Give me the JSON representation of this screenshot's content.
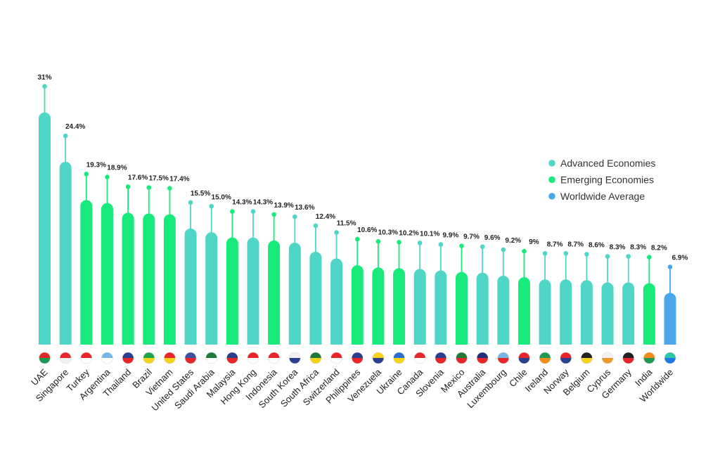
{
  "chart_data": {
    "type": "bar",
    "title": "",
    "xlabel": "",
    "ylabel": "",
    "ylim": [
      0,
      32
    ],
    "grid": false,
    "legend_placement": "right",
    "legend": [
      {
        "label": "Advanced Economies",
        "group": "advanced"
      },
      {
        "label": "Emerging Economies",
        "group": "emerging"
      },
      {
        "label": "Worldwide Average",
        "group": "worldwide"
      }
    ],
    "colors": {
      "advanced": "#4fd6c6",
      "emerging": "#19ea7c",
      "worldwide": "#4aa8ea"
    },
    "categories": [
      "UAE",
      "Singapore",
      "Turkey",
      "Argentina",
      "Thailand",
      "Brazil",
      "Vietnam",
      "United States",
      "Saudi Arabia",
      "Malaysia",
      "Hong Kong",
      "Indonesia",
      "South Korea",
      "South Africa",
      "Switzerland",
      "Philippines",
      "Venezuela",
      "Ukraine",
      "Canada",
      "Slovenia",
      "Mexico",
      "Australia",
      "Luxembourg",
      "Chile",
      "Ireland",
      "Norway",
      "Belgium",
      "Cyprus",
      "Germany",
      "India",
      "Worldwide"
    ],
    "values": [
      31,
      24.4,
      19.3,
      18.9,
      17.6,
      17.5,
      17.4,
      15.5,
      15.0,
      14.3,
      14.3,
      13.9,
      13.6,
      12.4,
      11.5,
      10.6,
      10.3,
      10.2,
      10.1,
      9.9,
      9.7,
      9.6,
      9.2,
      9,
      8.7,
      8.7,
      8.6,
      8.3,
      8.3,
      8.2,
      6.9
    ],
    "value_labels": [
      "31%",
      "24.4%",
      "19.3%",
      "18.9%",
      "17.6%",
      "17.5%",
      "17.4%",
      "15.5%",
      "15.0%",
      "14.3%",
      "14.3%",
      "13.9%",
      "13.6%",
      "12.4%",
      "11.5%",
      "10.6%",
      "10.3%",
      "10.2%",
      "10.1%",
      "9.9%",
      "9.7%",
      "9.6%",
      "9.2%",
      "9%",
      "8.7%",
      "8.7%",
      "8.6%",
      "8.3%",
      "8.3%",
      "8.2%",
      "6.9%"
    ],
    "groups": [
      "advanced",
      "advanced",
      "emerging",
      "emerging",
      "emerging",
      "emerging",
      "emerging",
      "advanced",
      "advanced",
      "emerging",
      "advanced",
      "emerging",
      "advanced",
      "advanced",
      "advanced",
      "emerging",
      "emerging",
      "emerging",
      "advanced",
      "advanced",
      "emerging",
      "advanced",
      "advanced",
      "emerging",
      "advanced",
      "advanced",
      "advanced",
      "advanced",
      "advanced",
      "emerging",
      "worldwide"
    ],
    "flag_icons": [
      "flag-uae-icon",
      "flag-singapore-icon",
      "flag-turkey-icon",
      "flag-argentina-icon",
      "flag-thailand-icon",
      "flag-brazil-icon",
      "flag-vietnam-icon",
      "flag-united-states-icon",
      "flag-saudi-arabia-icon",
      "flag-malaysia-icon",
      "flag-hong-kong-icon",
      "flag-indonesia-icon",
      "flag-south-korea-icon",
      "flag-south-africa-icon",
      "flag-switzerland-icon",
      "flag-philippines-icon",
      "flag-venezuela-icon",
      "flag-ukraine-icon",
      "flag-canada-icon",
      "flag-slovenia-icon",
      "flag-mexico-icon",
      "flag-australia-icon",
      "flag-luxembourg-icon",
      "flag-chile-icon",
      "flag-ireland-icon",
      "flag-norway-icon",
      "flag-belgium-icon",
      "flag-cyprus-icon",
      "flag-germany-icon",
      "flag-india-icon",
      "globe-icon"
    ]
  }
}
